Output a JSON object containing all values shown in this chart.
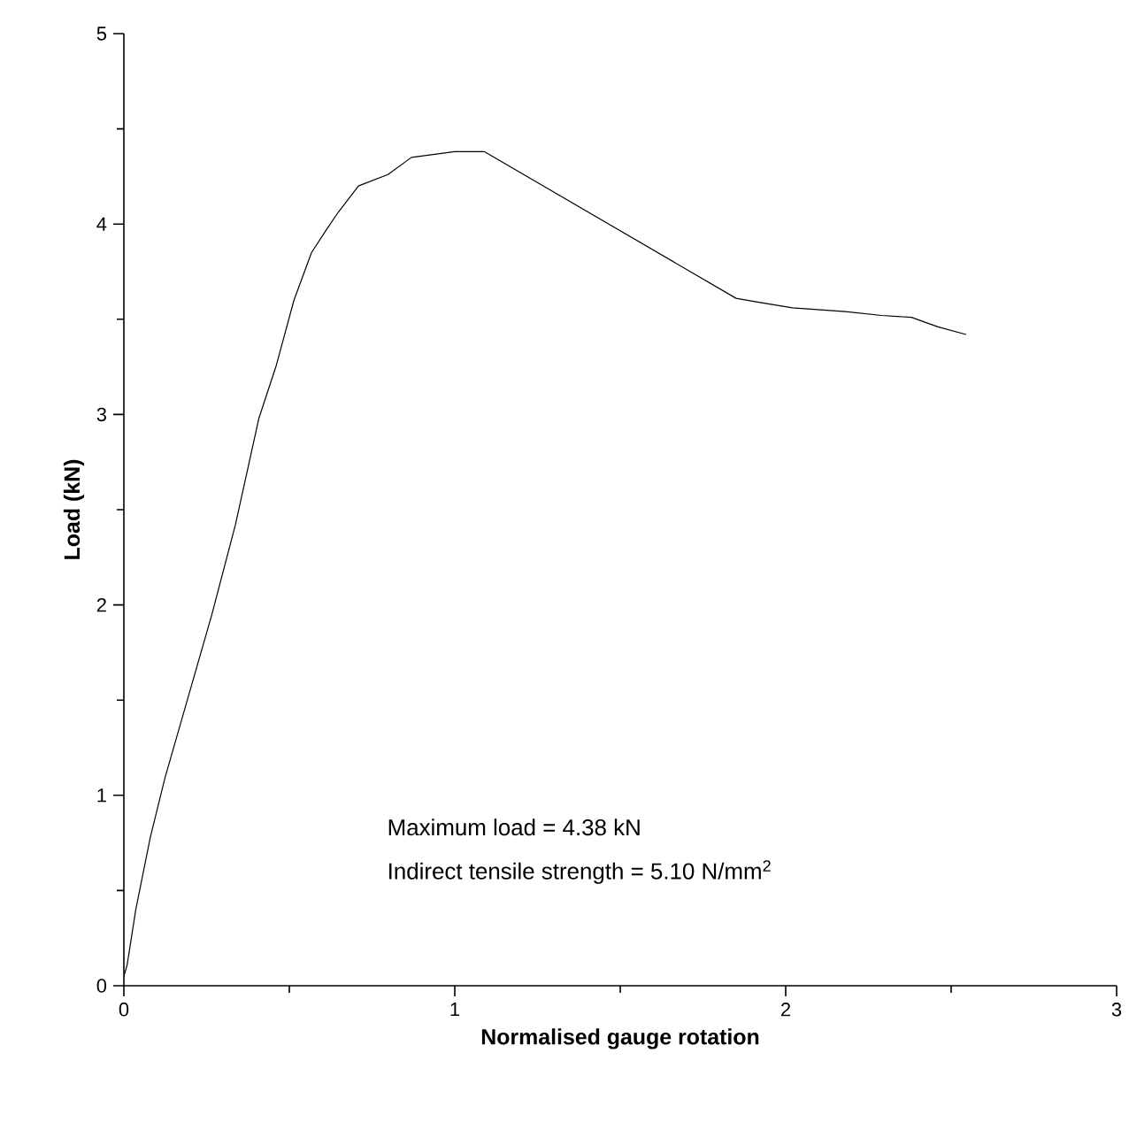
{
  "chart_data": {
    "type": "line",
    "xlabel": "Normalised gauge rotation",
    "ylabel": "Load (kN)",
    "xlim": [
      0,
      3
    ],
    "ylim": [
      0,
      5
    ],
    "xticks": [
      0,
      1,
      2,
      3
    ],
    "yticks": [
      0,
      1,
      2,
      3,
      4,
      5
    ],
    "marker": "none",
    "line_style": "solid",
    "annotations": [
      "Maximum load = 4.38 kN",
      "Indirect tensile strength = 5.10 N/mm$^{2}$"
    ],
    "series": [
      {
        "color": "#000000",
        "x": [
          0,
          0.01,
          0.036,
          0.08,
          0.124,
          0.195,
          0.266,
          0.337,
          0.408,
          0.461,
          0.514,
          0.567,
          0.612,
          0.647,
          0.709,
          0.798,
          0.869,
          1.0,
          1.09,
          1.85,
          1.915,
          2.02,
          2.18,
          2.29,
          2.38,
          2.46,
          2.545
        ],
        "values": [
          0.05,
          0.11,
          0.4,
          0.78,
          1.09,
          1.52,
          1.95,
          2.42,
          2.98,
          3.26,
          3.6,
          3.85,
          3.97,
          4.06,
          4.2,
          4.26,
          4.35,
          4.38,
          4.38,
          3.61,
          3.59,
          3.56,
          3.54,
          3.52,
          3.51,
          3.46,
          3.42
        ]
      }
    ]
  }
}
